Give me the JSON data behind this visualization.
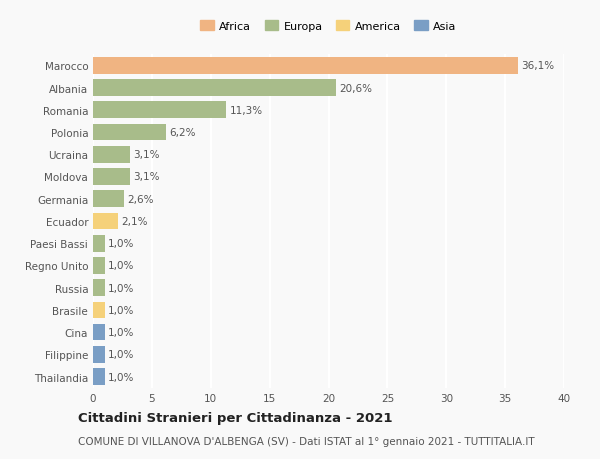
{
  "countries": [
    "Marocco",
    "Albania",
    "Romania",
    "Polonia",
    "Ucraina",
    "Moldova",
    "Germania",
    "Ecuador",
    "Paesi Bassi",
    "Regno Unito",
    "Russia",
    "Brasile",
    "Cina",
    "Filippine",
    "Thailandia"
  ],
  "values": [
    36.1,
    20.6,
    11.3,
    6.2,
    3.1,
    3.1,
    2.6,
    2.1,
    1.0,
    1.0,
    1.0,
    1.0,
    1.0,
    1.0,
    1.0
  ],
  "labels": [
    "36,1%",
    "20,6%",
    "11,3%",
    "6,2%",
    "3,1%",
    "3,1%",
    "2,6%",
    "2,1%",
    "1,0%",
    "1,0%",
    "1,0%",
    "1,0%",
    "1,0%",
    "1,0%",
    "1,0%"
  ],
  "colors": [
    "#f0b482",
    "#a8bc8a",
    "#a8bc8a",
    "#a8bc8a",
    "#a8bc8a",
    "#a8bc8a",
    "#a8bc8a",
    "#f5d17a",
    "#a8bc8a",
    "#a8bc8a",
    "#a8bc8a",
    "#f5d17a",
    "#7a9ec5",
    "#7a9ec5",
    "#7a9ec5"
  ],
  "legend_labels": [
    "Africa",
    "Europa",
    "America",
    "Asia"
  ],
  "legend_colors": [
    "#f0b482",
    "#a8bc8a",
    "#f5d17a",
    "#7a9ec5"
  ],
  "title_main": "Cittadini Stranieri per Cittadinanza - 2021",
  "title_sub": "COMUNE DI VILLANOVA D'ALBENGA (SV) - Dati ISTAT al 1° gennaio 2021 - TUTTITALIA.IT",
  "xlim": [
    0,
    40
  ],
  "xticks": [
    0,
    5,
    10,
    15,
    20,
    25,
    30,
    35,
    40
  ],
  "background_color": "#f9f9f9",
  "grid_color": "#ffffff",
  "bar_height": 0.75,
  "label_fontsize": 7.5,
  "tick_fontsize": 7.5,
  "title_fontsize": 9.5,
  "subtitle_fontsize": 7.5
}
